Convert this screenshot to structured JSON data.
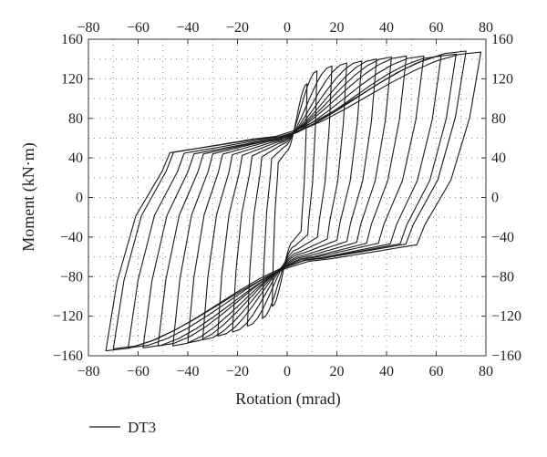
{
  "chart_data": {
    "type": "line",
    "title": "",
    "xlabel": "Rotation (mrad)",
    "ylabel": "Moment (kN·m)",
    "xlim": [
      -80,
      80
    ],
    "ylim": [
      -160,
      160
    ],
    "x_ticks": [
      -80,
      -60,
      -40,
      -20,
      0,
      20,
      40,
      60,
      80
    ],
    "y_ticks": [
      -160,
      -120,
      -80,
      -40,
      0,
      40,
      80,
      120,
      160
    ],
    "x_tick_labels": [
      "−80",
      "−60",
      "−40",
      "−20",
      "0",
      "20",
      "40",
      "60",
      "80"
    ],
    "y_tick_labels": [
      "−160",
      "−120",
      "−80",
      "−40",
      "0",
      "40",
      "80",
      "120",
      "160"
    ],
    "secondary_axes": "top-and-right tick labels mirror bottom-and-left",
    "grid": "dotted",
    "legend_position": "bottom-left, below plot",
    "line_color": "#1a1a1a",
    "series": [
      {
        "name": "DT3",
        "description": "hysteresis loops of increasing amplitude",
        "cycles": [
          {
            "x_max": 8,
            "x_min": -6,
            "m_max": 115,
            "m_min": -110
          },
          {
            "x_max": 12,
            "x_min": -10,
            "m_max": 128,
            "m_min": -122
          },
          {
            "x_max": 18,
            "x_min": -16,
            "m_max": 133,
            "m_min": -130
          },
          {
            "x_max": 24,
            "x_min": -22,
            "m_max": 136,
            "m_min": -136
          },
          {
            "x_max": 30,
            "x_min": -28,
            "m_max": 138,
            "m_min": -140
          },
          {
            "x_max": 36,
            "x_min": -34,
            "m_max": 140,
            "m_min": -144
          },
          {
            "x_max": 42,
            "x_min": -40,
            "m_max": 142,
            "m_min": -147
          },
          {
            "x_max": 48,
            "x_min": -46,
            "m_max": 143,
            "m_min": -150
          },
          {
            "x_max": 55,
            "x_min": -52,
            "m_max": 143,
            "m_min": -150
          },
          {
            "x_max": 62,
            "x_min": -58,
            "m_max": 143,
            "m_min": -152
          },
          {
            "x_max": 68,
            "x_min": -64,
            "m_max": 145,
            "m_min": -152
          },
          {
            "x_max": 72,
            "x_min": -70,
            "m_max": 148,
            "m_min": -153
          },
          {
            "x_max": 78,
            "x_min": -73,
            "m_max": 147,
            "m_min": -155
          }
        ]
      }
    ]
  }
}
